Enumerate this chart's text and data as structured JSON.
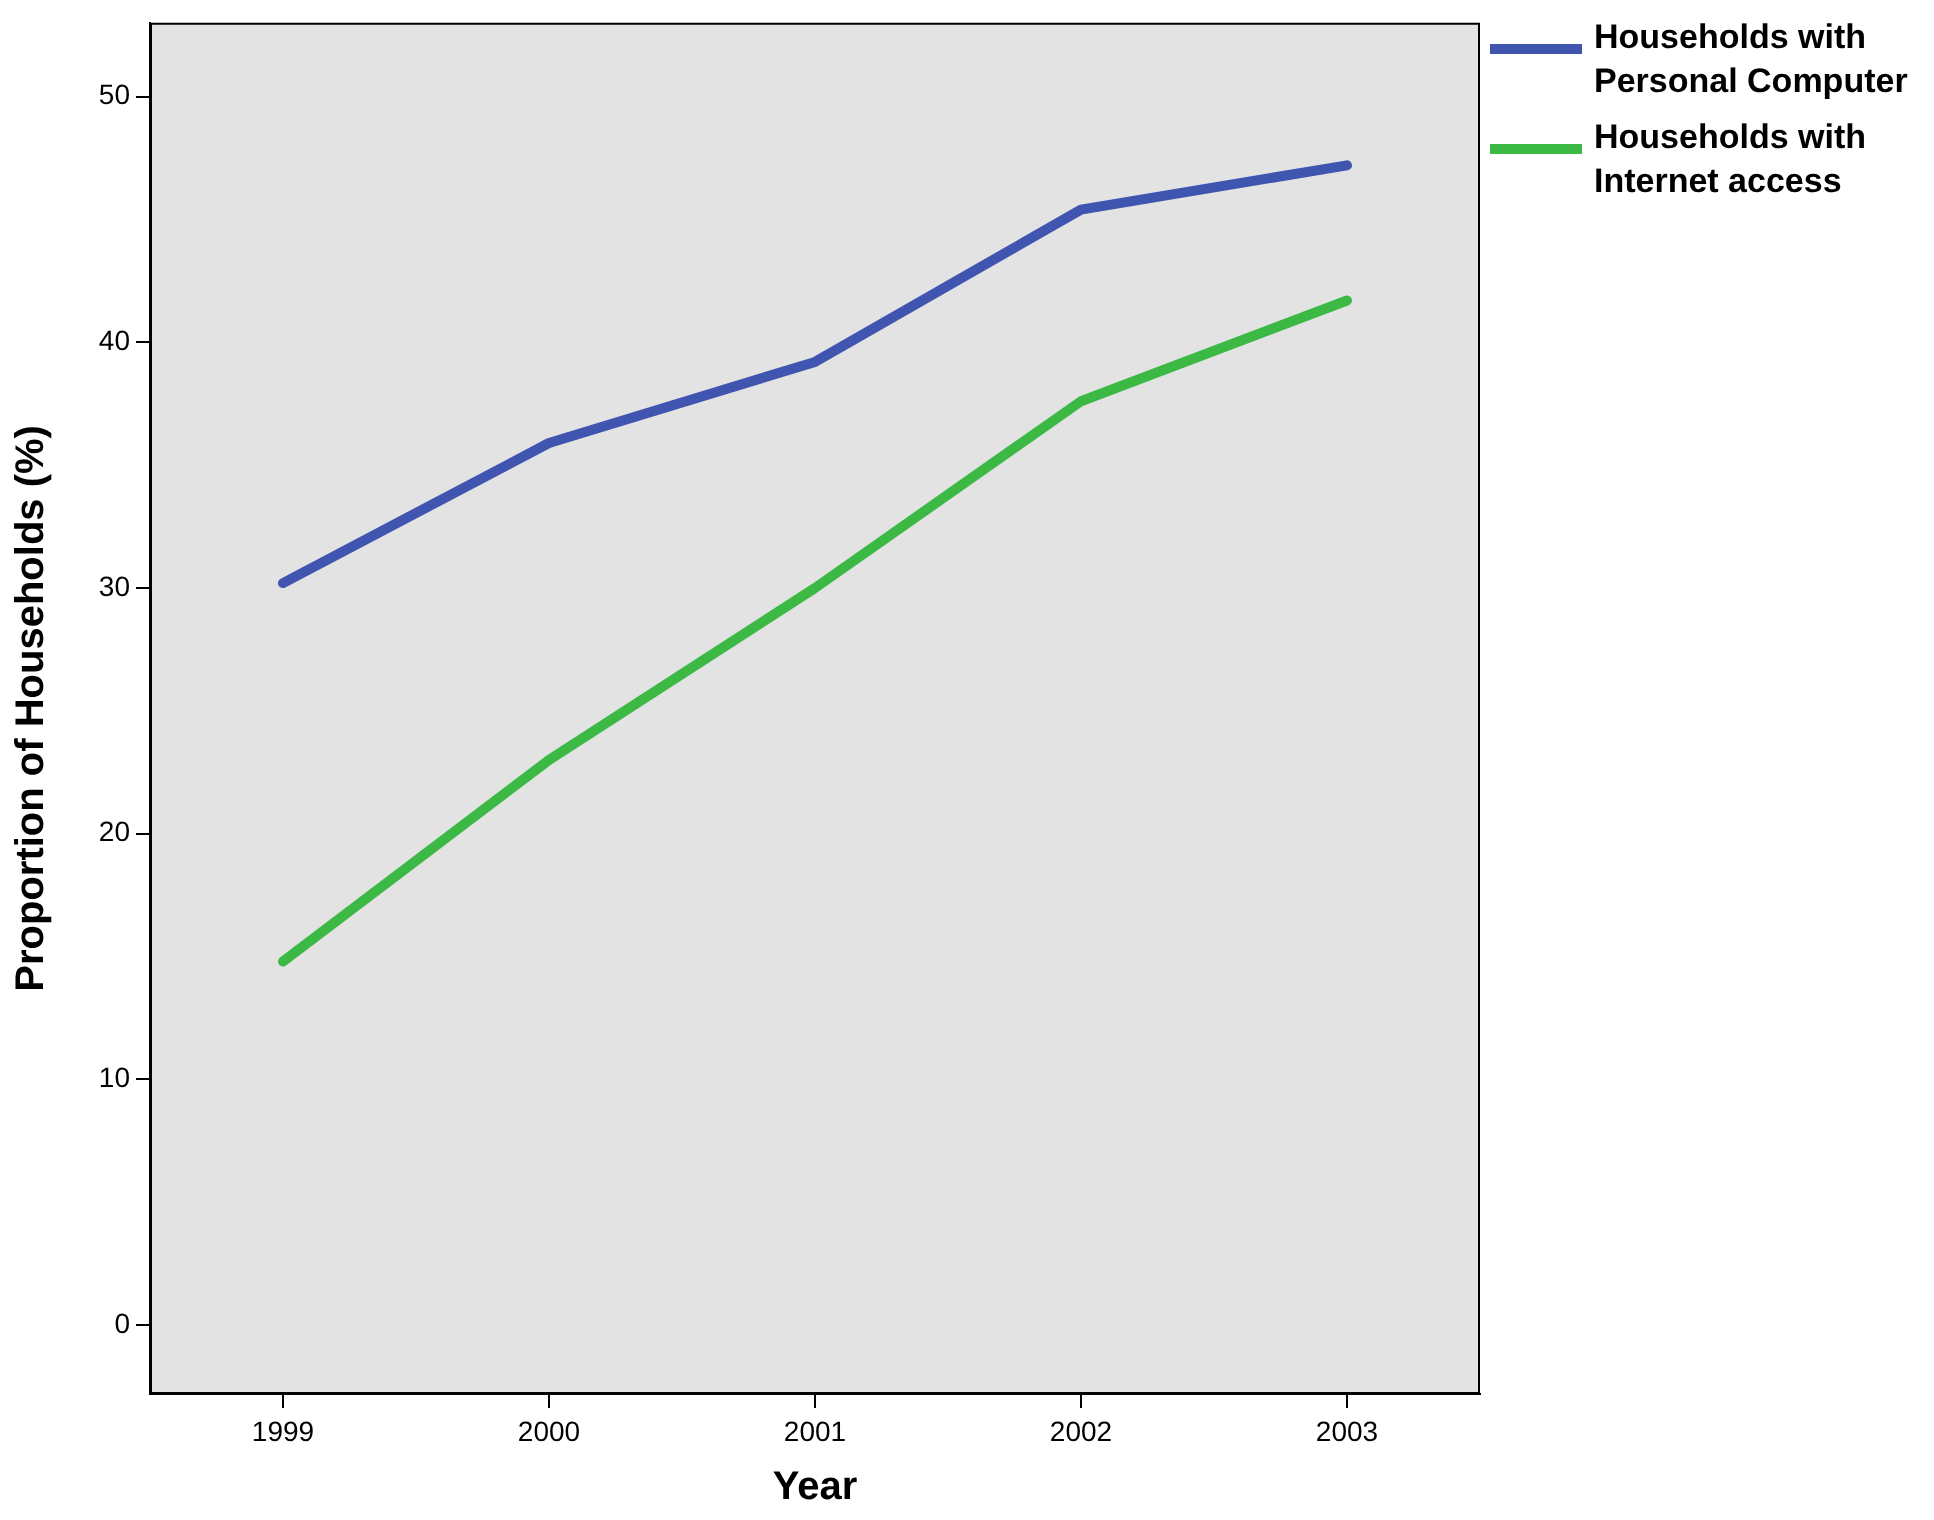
{
  "chart_data": {
    "type": "line",
    "xlabel": "Year",
    "ylabel": "Proportion of Households (%)",
    "categories": [
      "1999",
      "2000",
      "2001",
      "2002",
      "2003"
    ],
    "series": [
      {
        "name": "Households with Personal Computer",
        "color": "#4055b0",
        "values": [
          30.2,
          35.9,
          39.2,
          45.4,
          47.2
        ]
      },
      {
        "name": "Households with Internet access",
        "color": "#3cb944",
        "values": [
          14.8,
          23.0,
          30.0,
          37.6,
          41.7
        ]
      }
    ],
    "ylim": [
      -2.8,
      53
    ],
    "yticks": [
      0,
      10,
      20,
      30,
      40,
      50
    ],
    "grid": false,
    "legend": "right",
    "marker": "none",
    "line_style": "solid"
  }
}
